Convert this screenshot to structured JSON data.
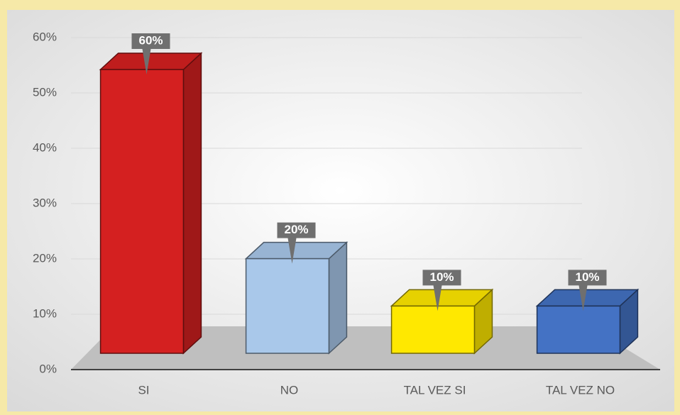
{
  "chart_data": {
    "type": "bar3d",
    "categories": [
      "SI",
      "NO",
      "TAL VEZ SI",
      "TAL VEZ NO"
    ],
    "values": [
      60,
      20,
      10,
      10
    ],
    "value_labels": [
      "60%",
      "20%",
      "10%",
      "10%"
    ],
    "colors": [
      "#d42020",
      "#a9c8ea",
      "#ffe800",
      "#4472c4"
    ],
    "ylim": [
      0,
      60
    ],
    "yticks": [
      {
        "value": 0,
        "label": "0%"
      },
      {
        "value": 10,
        "label": "10%"
      },
      {
        "value": 20,
        "label": "20%"
      },
      {
        "value": 30,
        "label": "30%"
      },
      {
        "value": 40,
        "label": "40%"
      },
      {
        "value": 50,
        "label": "50%"
      },
      {
        "value": 60,
        "label": "60%"
      }
    ],
    "grid": true
  }
}
